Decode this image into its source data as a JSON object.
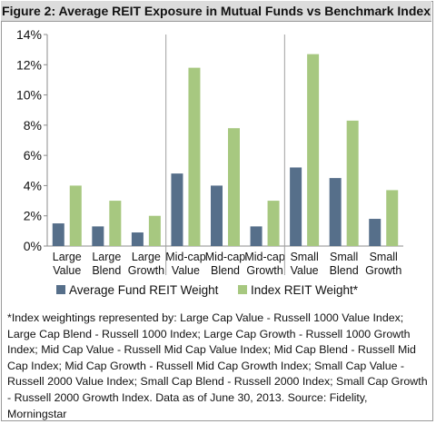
{
  "figure": {
    "title": "Figure 2: Average REIT Exposure in Mutual Funds vs Benchmark Index",
    "footnote": "*Index weightings represented by: Large Cap Value - Russell 1000 Value Index; Large Cap Blend - Russell 1000 Index; Large Cap Growth - Russell 1000 Growth Index; Mid Cap Value - Russell Mid Cap Value Index; Mid Cap Blend - Russell Mid Cap Index; Mid Cap Growth - Russell Mid Cap Growth Index; Small Cap Value - Russell 2000 Value Index; Small Cap Blend - Russell 2000 Index; Small Cap Growth - Russell 2000 Growth Index.  Data as of June 30, 2013.  Source: Fidelity, Morningstar"
  },
  "colors": {
    "fund": "#566f8a",
    "index": "#a7c880",
    "axis": "#8c8c8c",
    "separator": "#a0a0a0"
  },
  "chart_data": {
    "type": "bar",
    "categories": [
      [
        "Large",
        "Value"
      ],
      [
        "Large",
        "Blend"
      ],
      [
        "Large",
        "Growth"
      ],
      [
        "Mid-cap",
        "Value"
      ],
      [
        "Mid-cap",
        "Blend"
      ],
      [
        "Mid-cap",
        "Growth"
      ],
      [
        "Small",
        "Value"
      ],
      [
        "Small",
        "Blend"
      ],
      [
        "Small",
        "Growth"
      ]
    ],
    "series": [
      {
        "name": "Average Fund REIT Weight",
        "values": [
          1.5,
          1.3,
          0.9,
          4.8,
          4.0,
          1.3,
          5.2,
          4.5,
          1.8
        ]
      },
      {
        "name": "Index REIT Weight*",
        "values": [
          4.0,
          3.0,
          2.0,
          11.8,
          7.8,
          3.0,
          12.7,
          8.3,
          3.7
        ]
      }
    ],
    "y_ticks": [
      "0%",
      "2%",
      "4%",
      "6%",
      "8%",
      "10%",
      "12%",
      "14%"
    ],
    "ylim": [
      0,
      14
    ],
    "group_separators_after": [
      2,
      5
    ],
    "legend_position": "bottom",
    "grid": false
  }
}
